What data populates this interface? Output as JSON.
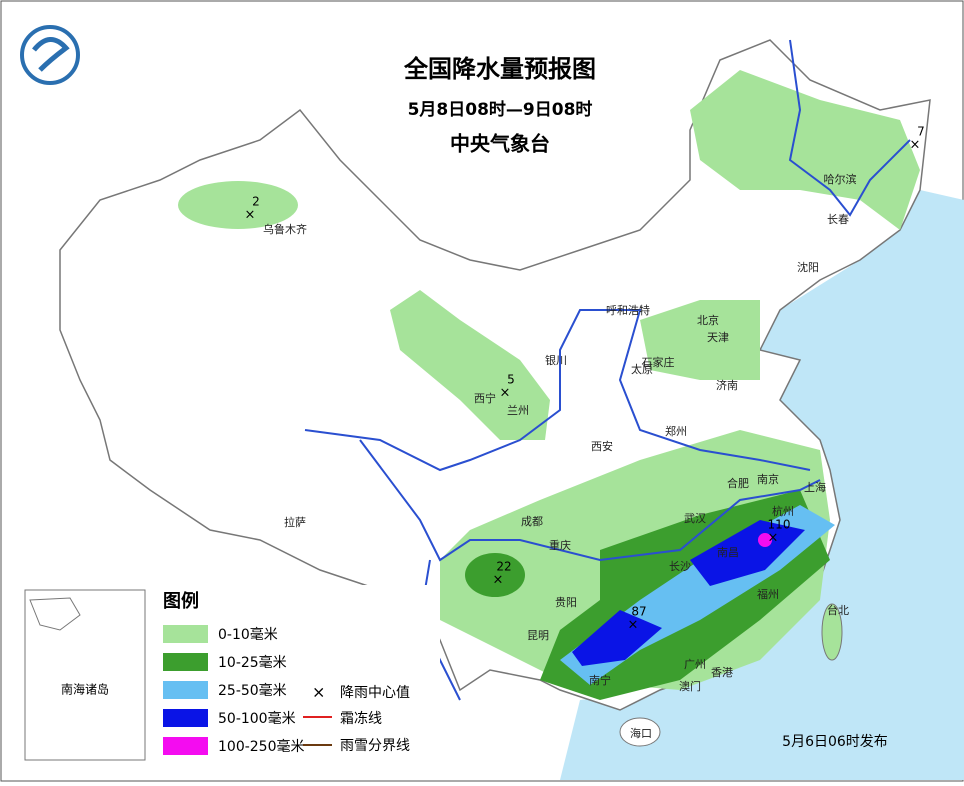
{
  "header": {
    "title": "全国降水量预报图",
    "period": "5月8日08时—9日08时",
    "issuer": "中央气象台"
  },
  "cities": [
    "乌鲁木齐",
    "哈尔滨",
    "长春",
    "沈阳",
    "呼和浩特",
    "北京",
    "天津",
    "石家庄",
    "太原",
    "济南",
    "银川",
    "西宁",
    "兰州",
    "郑州",
    "西安",
    "合肥",
    "南京",
    "上海",
    "杭州",
    "武汉",
    "成都",
    "重庆",
    "长沙",
    "南昌",
    "贵阳",
    "昆明",
    "福州",
    "台北",
    "南宁",
    "广州",
    "香港",
    "澳门",
    "海口",
    "拉萨"
  ],
  "rain_centers": [
    2,
    7,
    5,
    22,
    87,
    110
  ],
  "legend": {
    "title": "图例",
    "items": [
      {
        "label": "0-10毫米",
        "color": "#a6e39a"
      },
      {
        "label": "10-25毫米",
        "color": "#3c9e2e"
      },
      {
        "label": "25-50毫米",
        "color": "#66bff2"
      },
      {
        "label": "50-100毫米",
        "color": "#0a14e6"
      },
      {
        "label": "100-250毫米",
        "color": "#f40cf0"
      }
    ],
    "symbols": [
      "降雨中心值",
      "霜冻线",
      "雨雪分界线"
    ]
  },
  "inset": "南海诸岛",
  "footer": "5月6日06时发布"
}
